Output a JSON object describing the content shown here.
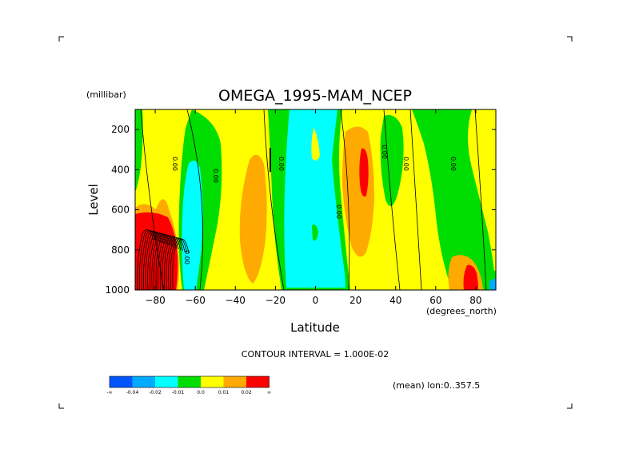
{
  "chart_data": {
    "type": "contour",
    "title": "OMEGA_1995-MAM_NCEP",
    "xlabel": "Latitude",
    "x_units": "(degrees_north)",
    "ylabel": "Level",
    "y_units": "(millibar)",
    "xlim": [
      -90,
      90
    ],
    "ylim": [
      1000,
      100
    ],
    "x_ticks": [
      -80,
      -60,
      -40,
      -20,
      0,
      20,
      40,
      60,
      80
    ],
    "y_ticks": [
      200,
      400,
      600,
      800,
      1000
    ],
    "contour_interval_text": "CONTOUR INTERVAL = 1.000E-02",
    "mean_text": "(mean) lon:0..357.5",
    "zero_labels": [
      "0.00",
      "0.00",
      "0.00",
      "0.00",
      "0.00",
      "0.00",
      "0.00",
      "0.00"
    ],
    "colorbar": {
      "colors": [
        "#0055ff",
        "#00aaff",
        "#00ffff",
        "#00dd00",
        "#ffff00",
        "#ffaa00",
        "#ff0000"
      ],
      "labels": [
        "-∞",
        "-0.04",
        "-0.02",
        "-0.01",
        "0.0",
        "0.01",
        "0.02",
        "∞"
      ]
    },
    "regions": [
      {
        "class": "positive",
        "color": "#ffff00",
        "x": [
          -90,
          -75
        ],
        "y": [
          100,
          620
        ]
      },
      {
        "class": "strong-positive",
        "color": "#ff0000",
        "x": [
          -90,
          -70
        ],
        "y": [
          620,
          1000
        ]
      },
      {
        "class": "negative",
        "color": "#00ffff",
        "x": [
          -68,
          -58
        ],
        "y": [
          330,
          1000
        ]
      },
      {
        "class": "positive",
        "color": "#ffaa00",
        "x": [
          -35,
          -25
        ],
        "y": [
          300,
          880
        ]
      },
      {
        "class": "negative",
        "color": "#00ffff",
        "x": [
          -14,
          5
        ],
        "y": [
          100,
          980
        ]
      },
      {
        "class": "positive",
        "color": "#ffaa00",
        "x": [
          15,
          30
        ],
        "y": [
          160,
          780
        ]
      },
      {
        "class": "strong-positive",
        "color": "#ff0000",
        "x": [
          23,
          27
        ],
        "y": [
          280,
          580
        ]
      },
      {
        "class": "positive",
        "color": "#ffaa00",
        "x": [
          65,
          86
        ],
        "y": [
          820,
          1000
        ]
      },
      {
        "class": "strong-positive",
        "color": "#ff0000",
        "x": [
          77,
          86
        ],
        "y": [
          880,
          1000
        ]
      }
    ]
  }
}
